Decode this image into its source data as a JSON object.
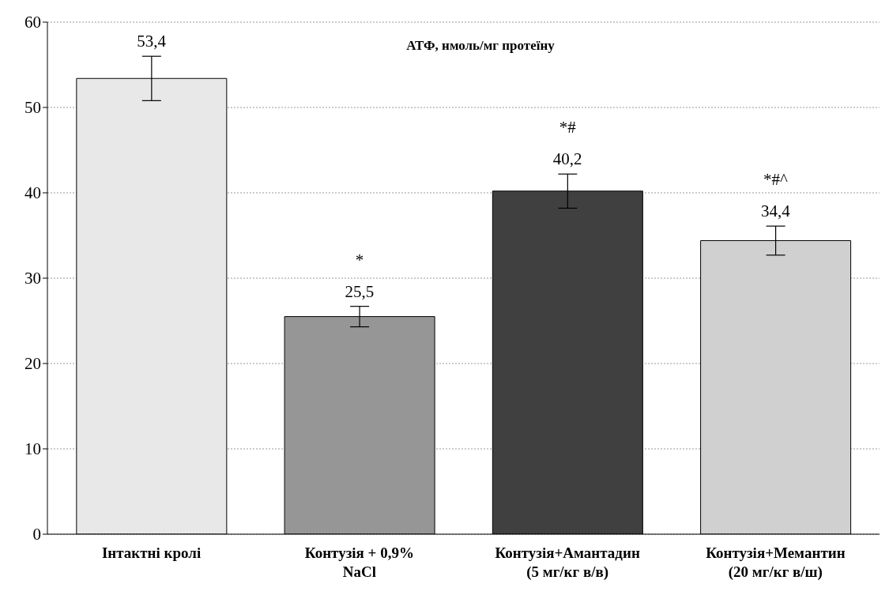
{
  "chart_data": {
    "type": "bar",
    "title": "АТФ, нмоль/мг протеїну",
    "categories": [
      "Інтактні кролі",
      "Контузія + 0,9% NaCl",
      "Контузія+Амантадин (5 мг/кг в/в)",
      "Контузія+Мемантин (20 мг/кг в/ш)"
    ],
    "values": [
      53.4,
      25.5,
      40.2,
      34.4
    ],
    "colors": [
      "#e8e8e8",
      "#969696",
      "#404040",
      "#d0d0d0"
    ],
    "errors": [
      2.6,
      1.2,
      2.0,
      1.7
    ],
    "value_labels": [
      "53,4",
      "25,5",
      "40,2",
      "34,4"
    ],
    "annotations": [
      "*",
      "*#",
      "*#^"
    ],
    "ylim": [
      0,
      60
    ],
    "yticks": [
      0,
      10,
      20,
      30,
      40,
      50,
      60
    ],
    "grid": "y",
    "legend": false
  }
}
